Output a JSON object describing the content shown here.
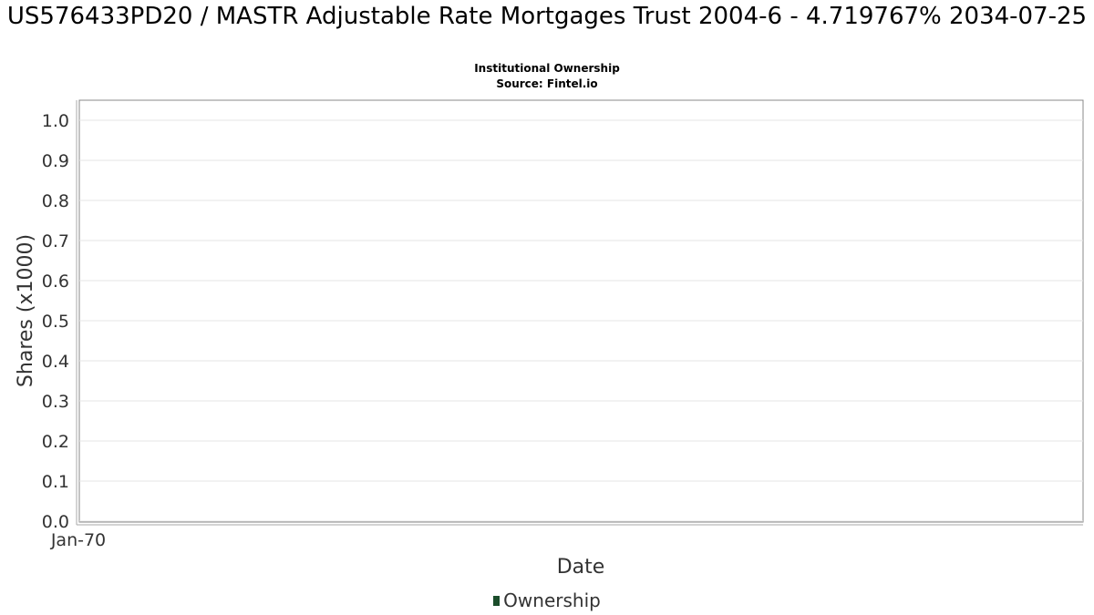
{
  "chart_data": {
    "type": "line",
    "title": "US576433PD20 / MASTR Adjustable Rate Mortgages Trust 2004-6 - 4.719767% 2034-07-25",
    "subtitle": "Institutional Ownership",
    "source": "Source: Fintel.io",
    "xlabel": "Date",
    "ylabel": "Shares (x1000)",
    "ylim": [
      0,
      1.0
    ],
    "y_ticks": [
      "0.0",
      "0.1",
      "0.2",
      "0.3",
      "0.4",
      "0.5",
      "0.6",
      "0.7",
      "0.8",
      "0.9",
      "1.0"
    ],
    "x_ticks": [
      "Jan-70"
    ],
    "grid": true,
    "legend_position": "bottom",
    "series": [
      {
        "name": "Ownership",
        "color": "#1b4d2b",
        "values": []
      }
    ]
  }
}
